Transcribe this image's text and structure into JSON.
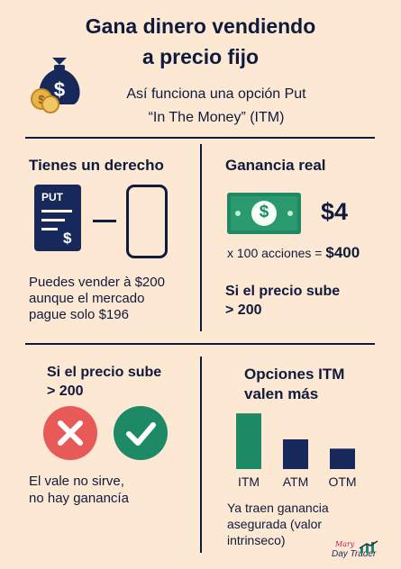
{
  "header": {
    "title_line1": "Gana dinero vendiendo",
    "title_line2": "a precio fijo",
    "subtitle_line1": "Así funciona una opción Put",
    "subtitle_line2": "“In The Money” (ITM)"
  },
  "right_panel": {
    "heading": "Tienes un derecho",
    "put_doc_label": "PUT",
    "put_doc_symbol": "$",
    "desc_line1": "Puedes vender à $200",
    "desc_line2": "aunque el mercado",
    "desc_line3": "pague solo $196"
  },
  "profit_panel": {
    "heading": "Ganancia real",
    "amount": "$4",
    "multiplier_text": "x 100 acciones =",
    "total": "$400",
    "condition_line1": "Si el precio sube",
    "condition_line2": "> 200"
  },
  "rise_panel": {
    "heading_line1": "Si el precio sube",
    "heading_line2": "> 200",
    "desc_line1": "El vale no sirve,",
    "desc_line2": "no hay ganancía"
  },
  "itm_panel": {
    "heading_line1": "Opciones ITM",
    "heading_line2": "valen más",
    "desc_line1": "Ya traen ganancia",
    "desc_line2": "asegurada (valor",
    "desc_line3": "intrinseco)"
  },
  "chart_data": {
    "type": "bar",
    "categories": [
      "ITM",
      "ATM",
      "OTM"
    ],
    "values": [
      3,
      1.6,
      1.1
    ],
    "colors": [
      "#1e8a65",
      "#16295a",
      "#16295a"
    ],
    "ylim": [
      0,
      3.2
    ]
  },
  "logo": {
    "script": "Mary",
    "text": "Day Trader"
  },
  "colors": {
    "navy": "#0f1b3d",
    "green": "#1e8a65",
    "red": "#e85a58",
    "background": "#fde8d4",
    "gold": "#e8b34a"
  },
  "icons": [
    "money-bag-icon",
    "coin-stack-icon",
    "put-document-icon",
    "smartphone-icon",
    "dollar-bill-icon",
    "x-mark-icon",
    "checkmark-icon"
  ]
}
